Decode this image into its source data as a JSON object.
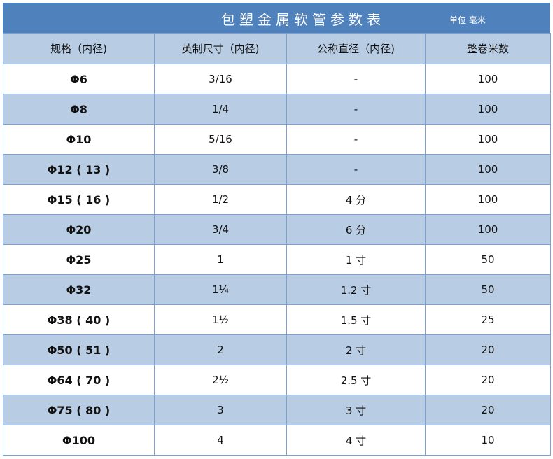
{
  "title": "包塑金属软管参数表",
  "unit": "单位 毫米",
  "colors": {
    "title_bg": "#4f81bd",
    "alt_row": "#b8cce4",
    "border": "#7a9fd0"
  },
  "columns": [
    "规格（内径)",
    "英制尺寸（内径)",
    "公称直径（内径)",
    "整卷米数"
  ],
  "rows": [
    [
      "Φ6",
      "3/16",
      "-",
      "100"
    ],
    [
      "Φ8",
      "1/4",
      "-",
      "100"
    ],
    [
      "Φ10",
      "5/16",
      "-",
      "100"
    ],
    [
      "Φ12 ( 13 )",
      "3/8",
      "-",
      "100"
    ],
    [
      "Φ15 ( 16 )",
      "1/2",
      "4 分",
      "100"
    ],
    [
      "Φ20",
      "3/4",
      "6 分",
      "100"
    ],
    [
      "Φ25",
      "1",
      "1 寸",
      "50"
    ],
    [
      "Φ32",
      "1¼",
      "1.2 寸",
      "50"
    ],
    [
      "Φ38 ( 40 )",
      "1½",
      "1.5 寸",
      "25"
    ],
    [
      "Φ50 ( 51 )",
      "2",
      "2 寸",
      "20"
    ],
    [
      "Φ64 ( 70 )",
      "2½",
      "2.5 寸",
      "20"
    ],
    [
      "Φ75 ( 80 )",
      "3",
      "3 寸",
      "20"
    ],
    [
      "Φ100",
      "4",
      "4 寸",
      "10"
    ]
  ]
}
